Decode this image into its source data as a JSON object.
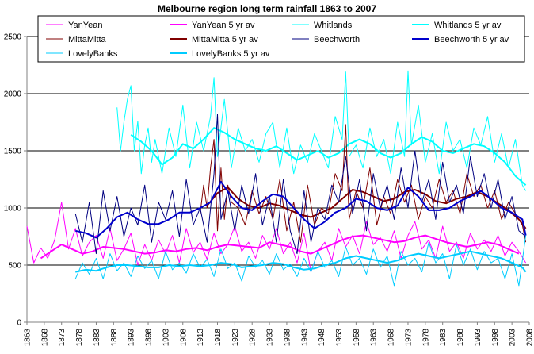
{
  "chart_data": {
    "type": "line",
    "title": "Melbourne region long term rainfall 1863 to 2007",
    "xlabel": "",
    "ylabel": "",
    "xlim": [
      1863,
      2008
    ],
    "ylim": [
      0,
      2500
    ],
    "yticks": [
      0,
      500,
      1000,
      1500,
      2000,
      2500
    ],
    "xticks": [
      1863,
      1868,
      1873,
      1878,
      1883,
      1888,
      1893,
      1898,
      1903,
      1908,
      1913,
      1918,
      1923,
      1928,
      1933,
      1938,
      1943,
      1948,
      1953,
      1958,
      1963,
      1968,
      1973,
      1978,
      1983,
      1988,
      1993,
      1998,
      2003,
      2008
    ],
    "grid": "horizontal",
    "legend_position": "top",
    "series": [
      {
        "name": "YanYean",
        "color": "#ff00ff",
        "width": 1,
        "x": [
          1863,
          1865,
          1867,
          1869,
          1871,
          1873,
          1875,
          1877,
          1879,
          1881,
          1883,
          1885,
          1887,
          1889,
          1891,
          1893,
          1895,
          1897,
          1899,
          1901,
          1903,
          1905,
          1907,
          1909,
          1911,
          1913,
          1915,
          1917,
          1919,
          1921,
          1923,
          1925,
          1927,
          1929,
          1931,
          1933,
          1935,
          1937,
          1939,
          1941,
          1943,
          1945,
          1947,
          1949,
          1951,
          1953,
          1955,
          1957,
          1959,
          1961,
          1963,
          1965,
          1967,
          1969,
          1971,
          1973,
          1975,
          1977,
          1979,
          1981,
          1983,
          1985,
          1987,
          1989,
          1991,
          1993,
          1995,
          1997,
          1999,
          2001,
          2003,
          2005,
          2007
        ],
        "y": [
          840,
          520,
          650,
          560,
          720,
          1050,
          640,
          820,
          580,
          700,
          760,
          560,
          820,
          540,
          640,
          780,
          500,
          680,
          540,
          720,
          600,
          760,
          520,
          820,
          610,
          700,
          550,
          780,
          600,
          680,
          840,
          620,
          700,
          560,
          760,
          640,
          820,
          600,
          700,
          520,
          780,
          440,
          620,
          700,
          540,
          820,
          660,
          760,
          600,
          880,
          680,
          740,
          620,
          800,
          560,
          760,
          880,
          640,
          720,
          560,
          840,
          620,
          700,
          560,
          780,
          640,
          720,
          620,
          760,
          580,
          700,
          620,
          520
        ]
      },
      {
        "name": "YanYean 5 yr av",
        "color": "#ff00ff",
        "width": 2,
        "x": [
          1867,
          1870,
          1873,
          1876,
          1879,
          1882,
          1885,
          1888,
          1891,
          1894,
          1897,
          1900,
          1903,
          1906,
          1909,
          1912,
          1915,
          1918,
          1921,
          1924,
          1927,
          1930,
          1933,
          1936,
          1939,
          1942,
          1945,
          1948,
          1951,
          1954,
          1957,
          1960,
          1963,
          1966,
          1969,
          1972,
          1975,
          1978,
          1981,
          1984,
          1987,
          1990,
          1993,
          1996,
          1999,
          2002,
          2005
        ],
        "y": [
          560,
          620,
          680,
          640,
          600,
          620,
          660,
          650,
          640,
          620,
          600,
          610,
          630,
          620,
          640,
          650,
          630,
          660,
          680,
          670,
          660,
          650,
          700,
          680,
          660,
          620,
          600,
          640,
          680,
          720,
          750,
          760,
          740,
          720,
          700,
          710,
          740,
          760,
          730,
          700,
          680,
          660,
          680,
          700,
          680,
          640,
          600
        ]
      },
      {
        "name": "Whitlands",
        "color": "#00ffff",
        "width": 1,
        "x": [
          1889,
          1890,
          1891,
          1892,
          1893,
          1894,
          1895,
          1896,
          1897,
          1898,
          1899,
          1900,
          1902,
          1904,
          1906,
          1908,
          1910,
          1912,
          1914,
          1916,
          1917,
          1918,
          1920,
          1922,
          1924,
          1926,
          1928,
          1930,
          1932,
          1934,
          1936,
          1938,
          1940,
          1942,
          1944,
          1946,
          1948,
          1950,
          1952,
          1954,
          1955,
          1956,
          1958,
          1960,
          1962,
          1964,
          1966,
          1968,
          1970,
          1972,
          1973,
          1974,
          1976,
          1978,
          1980,
          1982,
          1984,
          1986,
          1988,
          1990,
          1992,
          1994,
          1996,
          1998,
          2000,
          2002,
          2004,
          2006,
          2007
        ],
        "y": [
          1880,
          1500,
          1750,
          1950,
          2070,
          1500,
          1760,
          1300,
          1550,
          1700,
          1400,
          1600,
          1300,
          1700,
          1450,
          1900,
          1350,
          1750,
          1500,
          1800,
          2140,
          1450,
          1950,
          1350,
          1700,
          1500,
          1600,
          1400,
          1650,
          1750,
          1350,
          1700,
          1300,
          1550,
          1400,
          1650,
          1500,
          1350,
          1800,
          1600,
          2190,
          1450,
          1550,
          1350,
          1700,
          1450,
          1600,
          1300,
          1750,
          1450,
          2200,
          1550,
          1900,
          1400,
          1650,
          1300,
          1750,
          1500,
          1600,
          1350,
          1700,
          1550,
          1800,
          1400,
          1650,
          1350,
          1600,
          1200,
          1150
        ]
      },
      {
        "name": "Whitlands 5 yr av",
        "color": "#00ffff",
        "width": 2,
        "x": [
          1893,
          1896,
          1899,
          1902,
          1905,
          1908,
          1911,
          1914,
          1917,
          1920,
          1923,
          1926,
          1929,
          1932,
          1935,
          1938,
          1941,
          1944,
          1947,
          1950,
          1953,
          1956,
          1959,
          1962,
          1965,
          1968,
          1971,
          1974,
          1977,
          1980,
          1983,
          1986,
          1989,
          1992,
          1995,
          1998,
          2001,
          2004,
          2007
        ],
        "y": [
          1640,
          1580,
          1500,
          1380,
          1440,
          1560,
          1520,
          1600,
          1700,
          1660,
          1600,
          1560,
          1520,
          1500,
          1540,
          1480,
          1420,
          1460,
          1500,
          1440,
          1480,
          1560,
          1600,
          1560,
          1480,
          1440,
          1480,
          1560,
          1620,
          1580,
          1500,
          1480,
          1520,
          1560,
          1540,
          1480,
          1400,
          1280,
          1200
        ]
      },
      {
        "name": "MittaMitta",
        "color": "#800000",
        "width": 1,
        "x": [
          1913,
          1914,
          1915,
          1916,
          1917,
          1918,
          1919,
          1920,
          1921,
          1922,
          1924,
          1926,
          1928,
          1930,
          1932,
          1934,
          1936,
          1938,
          1940,
          1942,
          1944,
          1946,
          1948,
          1950,
          1952,
          1954,
          1955,
          1956,
          1958,
          1960,
          1962,
          1964,
          1966,
          1968,
          1970,
          1972,
          1974,
          1976,
          1978,
          1980,
          1982,
          1984,
          1986,
          1988,
          1990,
          1992,
          1994,
          1996,
          1998,
          2000,
          2002,
          2004,
          2006,
          2007
        ],
        "y": [
          950,
          1200,
          1000,
          1350,
          1600,
          800,
          1350,
          900,
          1200,
          1050,
          1000,
          850,
          1150,
          950,
          1100,
          900,
          1250,
          800,
          1050,
          700,
          1200,
          850,
          1000,
          950,
          1300,
          1150,
          1730,
          900,
          1150,
          1000,
          1350,
          850,
          1100,
          950,
          1250,
          1050,
          1200,
          900,
          1100,
          1000,
          1250,
          1050,
          1150,
          950,
          1300,
          1100,
          1200,
          1000,
          1150,
          900,
          1050,
          950,
          850,
          700
        ]
      },
      {
        "name": "MittaMitta 5 yr av",
        "color": "#800000",
        "width": 2,
        "x": [
          1915,
          1918,
          1921,
          1924,
          1927,
          1930,
          1933,
          1936,
          1939,
          1942,
          1945,
          1948,
          1951,
          1954,
          1957,
          1960,
          1963,
          1966,
          1969,
          1972,
          1975,
          1978,
          1981,
          1984,
          1987,
          1990,
          1993,
          1996,
          1999,
          2002,
          2005,
          2007
        ],
        "y": [
          1020,
          1130,
          1180,
          1080,
          1020,
          1000,
          1040,
          1020,
          980,
          940,
          920,
          960,
          1000,
          1080,
          1160,
          1140,
          1100,
          1060,
          1080,
          1140,
          1160,
          1120,
          1060,
          1040,
          1080,
          1100,
          1140,
          1100,
          1040,
          980,
          900,
          820
        ]
      },
      {
        "name": "Beechworth",
        "color": "#000080",
        "width": 1,
        "x": [
          1877,
          1879,
          1881,
          1883,
          1885,
          1887,
          1889,
          1891,
          1893,
          1895,
          1897,
          1899,
          1901,
          1903,
          1905,
          1907,
          1909,
          1911,
          1913,
          1915,
          1917,
          1918,
          1919,
          1921,
          1923,
          1925,
          1927,
          1929,
          1931,
          1933,
          1935,
          1937,
          1939,
          1941,
          1943,
          1945,
          1947,
          1949,
          1951,
          1953,
          1955,
          1957,
          1959,
          1961,
          1963,
          1965,
          1967,
          1969,
          1971,
          1973,
          1975,
          1977,
          1979,
          1981,
          1983,
          1985,
          1987,
          1989,
          1991,
          1993,
          1995,
          1997,
          1999,
          2001,
          2003,
          2005,
          2007
        ],
        "y": [
          950,
          700,
          1050,
          600,
          1150,
          800,
          1100,
          750,
          1000,
          850,
          1200,
          700,
          1050,
          900,
          1150,
          750,
          1250,
          850,
          1000,
          700,
          1300,
          1820,
          900,
          1150,
          800,
          1200,
          950,
          1300,
          850,
          1100,
          700,
          1250,
          800,
          600,
          1150,
          700,
          1000,
          900,
          1200,
          1050,
          1450,
          950,
          1250,
          800,
          1300,
          1000,
          1200,
          900,
          1350,
          1000,
          1500,
          1050,
          1250,
          900,
          1400,
          1050,
          1200,
          950,
          1450,
          1100,
          1300,
          1000,
          1250,
          900,
          1100,
          800,
          750
        ]
      },
      {
        "name": "Beechworth 5 yr av",
        "color": "#0000cc",
        "width": 2,
        "x": [
          1877,
          1880,
          1883,
          1886,
          1889,
          1892,
          1895,
          1898,
          1901,
          1904,
          1907,
          1910,
          1913,
          1916,
          1919,
          1922,
          1925,
          1928,
          1931,
          1934,
          1937,
          1940,
          1943,
          1946,
          1949,
          1952,
          1955,
          1958,
          1961,
          1964,
          1967,
          1970,
          1973,
          1976,
          1979,
          1982,
          1985,
          1988,
          1991,
          1994,
          1997,
          2000,
          2003,
          2006,
          2007
        ],
        "y": [
          800,
          780,
          740,
          820,
          920,
          960,
          900,
          860,
          860,
          900,
          960,
          960,
          1000,
          1050,
          1230,
          1100,
          1000,
          980,
          1060,
          1120,
          1100,
          1000,
          900,
          820,
          880,
          960,
          1000,
          1080,
          1060,
          1000,
          980,
          1020,
          1180,
          1100,
          980,
          980,
          1000,
          1060,
          1100,
          1150,
          1080,
          1000,
          960,
          900,
          760
        ]
      },
      {
        "name": "LovelyBanks",
        "color": "#00ccff",
        "width": 1,
        "x": [
          1877,
          1879,
          1881,
          1883,
          1885,
          1887,
          1889,
          1891,
          1893,
          1895,
          1897,
          1899,
          1901,
          1903,
          1905,
          1907,
          1909,
          1911,
          1913,
          1915,
          1917,
          1919,
          1921,
          1923,
          1925,
          1927,
          1929,
          1931,
          1933,
          1935,
          1937,
          1939,
          1941,
          1943,
          1945,
          1947,
          1949,
          1951,
          1953,
          1955,
          1957,
          1959,
          1961,
          1963,
          1965,
          1967,
          1969,
          1971,
          1973,
          1975,
          1977,
          1979,
          1981,
          1983,
          1985,
          1987,
          1989,
          1991,
          1993,
          1995,
          1997,
          1999,
          2001,
          2003,
          2005,
          2007
        ],
        "y": [
          380,
          520,
          420,
          560,
          380,
          600,
          450,
          520,
          400,
          580,
          470,
          540,
          380,
          620,
          460,
          520,
          430,
          600,
          480,
          550,
          400,
          640,
          470,
          520,
          360,
          580,
          480,
          540,
          420,
          600,
          460,
          510,
          400,
          560,
          440,
          620,
          480,
          540,
          400,
          660,
          500,
          560,
          420,
          640,
          480,
          580,
          320,
          620,
          500,
          560,
          440,
          700,
          520,
          600,
          380,
          680,
          500,
          640,
          460,
          620,
          520,
          560,
          380,
          600,
          320,
          760
        ]
      },
      {
        "name": "LovelyBanks 5 yr av",
        "color": "#00ccff",
        "width": 2,
        "x": [
          1877,
          1880,
          1883,
          1886,
          1889,
          1892,
          1895,
          1898,
          1901,
          1904,
          1907,
          1910,
          1913,
          1916,
          1919,
          1922,
          1925,
          1928,
          1931,
          1934,
          1937,
          1940,
          1943,
          1946,
          1949,
          1952,
          1955,
          1958,
          1961,
          1964,
          1967,
          1970,
          1973,
          1976,
          1979,
          1982,
          1985,
          1988,
          1991,
          1994,
          1997,
          2000,
          2003,
          2006,
          2007
        ],
        "y": [
          440,
          460,
          450,
          480,
          500,
          500,
          490,
          480,
          480,
          500,
          490,
          500,
          490,
          500,
          520,
          510,
          480,
          490,
          500,
          520,
          510,
          480,
          460,
          470,
          500,
          520,
          560,
          580,
          560,
          540,
          520,
          540,
          580,
          600,
          580,
          560,
          580,
          600,
          620,
          600,
          580,
          560,
          520,
          480,
          440
        ]
      }
    ]
  }
}
